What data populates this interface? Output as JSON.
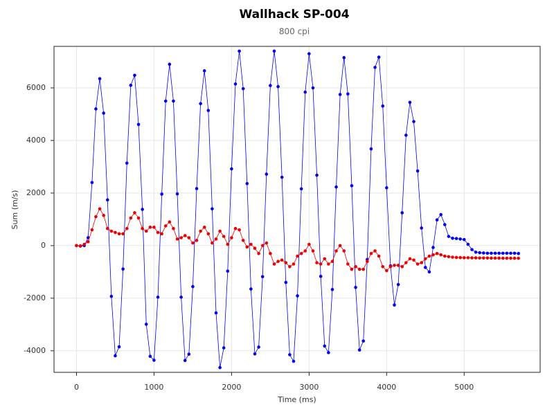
{
  "chart_data": {
    "type": "line",
    "title": "Wallhack SP-004",
    "subtitle": "800 cpi",
    "x_label": "Time (ms)",
    "y_label": "Sum (m/s)",
    "x": [
      0,
      50,
      100,
      150,
      200,
      250,
      300,
      350,
      400,
      450,
      500,
      550,
      600,
      650,
      700,
      750,
      800,
      850,
      900,
      950,
      1000,
      1050,
      1100,
      1150,
      1200,
      1250,
      1300,
      1350,
      1400,
      1450,
      1500,
      1550,
      1600,
      1650,
      1700,
      1750,
      1800,
      1850,
      1900,
      1950,
      2000,
      2050,
      2100,
      2150,
      2200,
      2250,
      2300,
      2350,
      2400,
      2450,
      2500,
      2550,
      2600,
      2650,
      2700,
      2750,
      2800,
      2850,
      2900,
      2950,
      3000,
      3050,
      3100,
      3150,
      3200,
      3250,
      3300,
      3350,
      3400,
      3450,
      3500,
      3550,
      3600,
      3650,
      3700,
      3750,
      3800,
      3850,
      3900,
      3950,
      4000,
      4050,
      4100,
      4150,
      4200,
      4250,
      4300,
      4350,
      4400,
      4450,
      4500,
      4550,
      4600,
      4650,
      4700,
      4750,
      4800,
      4850,
      4900,
      4950,
      5000,
      5050,
      5100,
      5150,
      5200,
      5250,
      5300,
      5350,
      5400,
      5450,
      5500,
      5550,
      5600,
      5650,
      5700
    ],
    "series": [
      {
        "color": "#0000ee",
        "values": [
          0,
          -20,
          0,
          300,
          2400,
          5200,
          6350,
          5040,
          1740,
          -1930,
          -4190,
          -3850,
          -890,
          3140,
          6100,
          6480,
          4610,
          1380,
          -2990,
          -4210,
          -4360,
          -1960,
          1960,
          5500,
          6900,
          5500,
          1970,
          -1960,
          -4370,
          -4130,
          -1560,
          2170,
          5400,
          6650,
          5140,
          1400,
          -2560,
          -4640,
          -3890,
          -970,
          2920,
          6150,
          7400,
          5970,
          2360,
          -1650,
          -4120,
          -3860,
          -1180,
          2720,
          6090,
          7400,
          6050,
          2600,
          -1400,
          -4150,
          -4400,
          -1910,
          2160,
          5840,
          7300,
          6000,
          2680,
          -1170,
          -3820,
          -4070,
          -1670,
          2230,
          5750,
          7150,
          5770,
          2280,
          -1590,
          -3970,
          -3630,
          -530,
          3680,
          6780,
          7170,
          5310,
          2200,
          -770,
          -2260,
          -1480,
          1250,
          4200,
          5450,
          4720,
          2840,
          670,
          -830,
          -1000,
          -70,
          980,
          1180,
          800,
          350,
          280,
          270,
          250,
          230,
          50,
          -150,
          -250,
          -270,
          -280,
          -290,
          -290,
          -290,
          -290,
          -290,
          -290,
          -290,
          -290,
          -300
        ]
      },
      {
        "color": "#ee0000",
        "values": [
          0,
          -10,
          50,
          150,
          600,
          1100,
          1400,
          1150,
          650,
          550,
          500,
          450,
          450,
          650,
          1050,
          1250,
          1050,
          650,
          550,
          700,
          700,
          500,
          450,
          750,
          900,
          650,
          250,
          300,
          380,
          300,
          100,
          200,
          550,
          700,
          450,
          100,
          250,
          550,
          350,
          50,
          300,
          650,
          600,
          200,
          -50,
          50,
          -100,
          -300,
          0,
          100,
          -300,
          -700,
          -600,
          -550,
          -650,
          -800,
          -700,
          -400,
          -300,
          -200,
          50,
          -200,
          -650,
          -700,
          -500,
          -700,
          -600,
          -200,
          0,
          -200,
          -700,
          -900,
          -800,
          -900,
          -900,
          -600,
          -300,
          -200,
          -400,
          -800,
          -950,
          -800,
          -750,
          -750,
          -800,
          -650,
          -500,
          -550,
          -700,
          -650,
          -500,
          -400,
          -350,
          -300,
          -350,
          -400,
          -420,
          -440,
          -450,
          -455,
          -460,
          -460,
          -465,
          -465,
          -470,
          -470,
          -470,
          -475,
          -475,
          -475,
          -480,
          -480,
          -480,
          -480,
          -480
        ]
      }
    ],
    "xlim": [
      -290,
      5980
    ],
    "ylim": [
      -4820,
      7580
    ],
    "xticks": [
      0,
      1000,
      2000,
      3000,
      4000,
      5000
    ],
    "yticks": [
      -4000,
      -2000,
      0,
      2000,
      4000,
      6000
    ],
    "grid": true
  }
}
